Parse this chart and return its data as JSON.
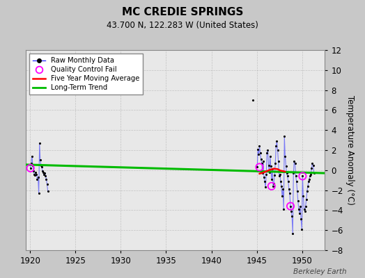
{
  "title": "MC CREDIE SPRINGS",
  "subtitle": "43.700 N, 122.283 W (United States)",
  "ylabel": "Temperature Anomaly (°C)",
  "credit": "Berkeley Earth",
  "xlim": [
    1919.5,
    1952.5
  ],
  "ylim": [
    -8,
    12
  ],
  "yticks": [
    -8,
    -6,
    -4,
    -2,
    0,
    2,
    4,
    6,
    8,
    10,
    12
  ],
  "xticks": [
    1920,
    1925,
    1930,
    1935,
    1940,
    1945,
    1950
  ],
  "fig_bg_color": "#c8c8c8",
  "plot_bg_color": "#e8e8e8",
  "raw_x_1920": [
    1920.04,
    1920.12,
    1920.21,
    1920.29,
    1920.37,
    1920.46,
    1920.54,
    1920.62,
    1920.71,
    1920.79,
    1920.87,
    1920.96,
    1921.04,
    1921.12,
    1921.21,
    1921.29,
    1921.37,
    1921.46,
    1921.54,
    1921.62,
    1921.71,
    1921.79,
    1921.87,
    1921.96
  ],
  "raw_y_1920": [
    0.2,
    0.7,
    1.4,
    0.5,
    -0.1,
    -0.4,
    -0.5,
    -0.2,
    -0.4,
    -0.9,
    -0.7,
    -2.3,
    2.7,
    1.0,
    0.5,
    0.3,
    -0.1,
    -0.2,
    -0.4,
    -0.3,
    -0.6,
    -0.9,
    -1.4,
    -2.1
  ],
  "raw_x_lone": [
    1944.54
  ],
  "raw_y_lone": [
    7.0
  ],
  "raw_x_1945": [
    1945.04,
    1945.12,
    1945.21,
    1945.29,
    1945.37,
    1945.46,
    1945.54,
    1945.62,
    1945.71,
    1945.79,
    1945.87,
    1945.96,
    1946.04,
    1946.12,
    1946.21,
    1946.29,
    1946.37,
    1946.46,
    1946.54,
    1946.62,
    1946.71,
    1946.79,
    1946.87,
    1946.96,
    1947.04,
    1947.12,
    1947.21,
    1947.29,
    1947.37,
    1947.46,
    1947.54,
    1947.62,
    1947.71,
    1947.79,
    1947.87,
    1947.96,
    1948.04,
    1948.12,
    1948.21,
    1948.29,
    1948.37,
    1948.46,
    1948.54,
    1948.62,
    1948.71,
    1948.79,
    1948.87,
    1948.96,
    1949.04,
    1949.12,
    1949.21,
    1949.29,
    1949.37,
    1949.46,
    1949.54,
    1949.62,
    1949.71,
    1949.79,
    1949.87,
    1949.96,
    1950.04,
    1950.12,
    1950.21,
    1950.29,
    1950.37,
    1950.46,
    1950.54,
    1950.62,
    1950.71,
    1950.79,
    1950.87,
    1950.96,
    1951.04,
    1951.12,
    1951.21,
    1951.29
  ],
  "raw_y_1945": [
    0.3,
    2.1,
    1.6,
    2.4,
    1.7,
    1.1,
    0.7,
    -0.3,
    0.9,
    -0.7,
    -1.1,
    -1.7,
    -0.4,
    1.7,
    2.0,
    0.5,
    -0.2,
    1.4,
    0.4,
    -0.9,
    0.1,
    -1.6,
    -1.3,
    -0.5,
    0.7,
    2.4,
    2.9,
    2.0,
    0.9,
    -0.6,
    -0.4,
    -1.1,
    -1.6,
    -2.6,
    -1.9,
    -3.9,
    3.4,
    1.4,
    0.4,
    -0.3,
    -0.6,
    -1.1,
    -1.9,
    -2.3,
    -3.6,
    -4.1,
    -4.6,
    -6.3,
    -0.3,
    0.9,
    0.7,
    -0.6,
    -1.1,
    -2.1,
    -3.1,
    -3.9,
    -4.3,
    -3.6,
    -4.9,
    -5.9,
    -0.6,
    -2.6,
    -3.9,
    -4.1,
    -3.6,
    -2.9,
    -2.1,
    -1.6,
    -1.1,
    -0.9,
    -0.6,
    -0.4,
    0.2,
    0.7,
    0.5,
    -0.3
  ],
  "qc_fail_x": [
    1920.04,
    1945.29,
    1946.62,
    1948.71,
    1950.04
  ],
  "qc_fail_y": [
    0.2,
    0.3,
    -1.6,
    -3.6,
    -0.6
  ],
  "five_year_avg_x": [
    1945.3,
    1945.7,
    1946.1,
    1946.5,
    1946.9,
    1947.3,
    1947.6,
    1947.9,
    1948.1
  ],
  "five_year_avg_y": [
    -0.35,
    -0.25,
    -0.1,
    0.05,
    0.15,
    0.1,
    -0.05,
    -0.1,
    -0.15
  ],
  "trend_x": [
    1919.5,
    1952.5
  ],
  "trend_y": [
    0.55,
    -0.3
  ],
  "line_color": "#3333ff",
  "line_alpha": 0.6,
  "dot_color": "#000000",
  "qc_color": "#ff00ff",
  "avg_color": "#ff0000",
  "trend_color": "#00bb00",
  "grid_color": "#aaaaaa"
}
